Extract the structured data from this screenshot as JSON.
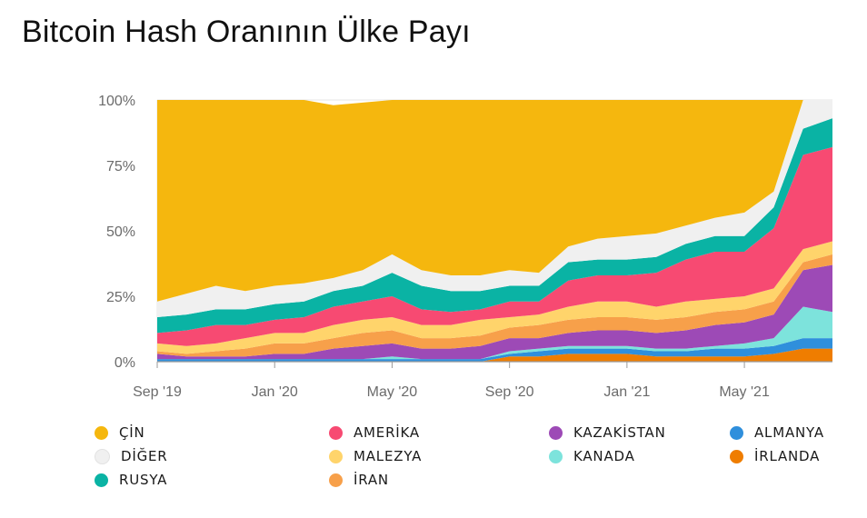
{
  "title": "Bitcoin Hash Oranının Ülke Payı",
  "chart_data": {
    "type": "area",
    "stacked": true,
    "x": [
      "2019-09",
      "2019-10",
      "2019-11",
      "2019-12",
      "2020-01",
      "2020-02",
      "2020-03",
      "2020-04",
      "2020-05",
      "2020-06",
      "2020-07",
      "2020-08",
      "2020-09",
      "2020-10",
      "2020-11",
      "2020-12",
      "2021-01",
      "2021-02",
      "2021-03",
      "2021-04",
      "2021-05",
      "2021-06",
      "2021-07",
      "2021-08"
    ],
    "x_tick_labels": [
      "Sep '19",
      "Jan '20",
      "May '20",
      "Sep '20",
      "Jan '21",
      "May '21"
    ],
    "y_tick_labels": [
      "0%",
      "25%",
      "50%",
      "75%",
      "100%"
    ],
    "ylim": [
      0,
      100
    ],
    "grid": true,
    "legend_position": "bottom",
    "series": [
      {
        "name": "İRLANDA",
        "color": "#ef7d00",
        "values": [
          0,
          0,
          0,
          0,
          0,
          0,
          0,
          0,
          0,
          0,
          0,
          0,
          2,
          2,
          3,
          3,
          3,
          2,
          2,
          2,
          2,
          3,
          5,
          5
        ]
      },
      {
        "name": "ALMANYA",
        "color": "#2f8fdc",
        "values": [
          1,
          1,
          1,
          1,
          1,
          1,
          1,
          1,
          1,
          1,
          1,
          1,
          1,
          2,
          2,
          2,
          2,
          2,
          2,
          3,
          3,
          3,
          4,
          4
        ]
      },
      {
        "name": "KANADA",
        "color": "#7de3dc",
        "values": [
          0,
          0,
          0,
          0,
          0,
          0,
          0,
          0,
          1,
          0,
          0,
          0,
          1,
          1,
          1,
          1,
          1,
          1,
          1,
          1,
          2,
          3,
          12,
          10
        ]
      },
      {
        "name": "KAZAKİSTAN",
        "color": "#9d4ab6",
        "values": [
          2,
          1,
          1,
          1,
          2,
          2,
          4,
          5,
          5,
          4,
          4,
          5,
          5,
          4,
          5,
          6,
          6,
          6,
          7,
          8,
          8,
          9,
          14,
          18
        ]
      },
      {
        "name": "İRAN",
        "color": "#f7a04a",
        "values": [
          1,
          1,
          2,
          3,
          4,
          4,
          4,
          5,
          5,
          4,
          4,
          4,
          4,
          5,
          5,
          5,
          5,
          5,
          5,
          5,
          5,
          5,
          3,
          4
        ]
      },
      {
        "name": "MALEZYA",
        "color": "#ffd46b",
        "values": [
          3,
          3,
          3,
          4,
          4,
          4,
          5,
          5,
          5,
          5,
          5,
          6,
          4,
          4,
          5,
          6,
          6,
          5,
          6,
          5,
          5,
          5,
          5,
          5
        ]
      },
      {
        "name": "AMERİKA",
        "color": "#f74a72",
        "values": [
          4,
          6,
          7,
          5,
          5,
          6,
          7,
          7,
          8,
          6,
          5,
          4,
          6,
          5,
          10,
          10,
          10,
          13,
          16,
          18,
          17,
          23,
          36,
          36
        ]
      },
      {
        "name": "RUSYA",
        "color": "#0ab3a4",
        "values": [
          6,
          6,
          6,
          6,
          6,
          6,
          6,
          6,
          9,
          9,
          8,
          7,
          6,
          6,
          7,
          6,
          6,
          6,
          6,
          6,
          6,
          8,
          10,
          11
        ]
      },
      {
        "name": "DİĞER",
        "color": "#f0f0f0",
        "values": [
          6,
          8,
          9,
          7,
          7,
          7,
          5,
          6,
          7,
          6,
          6,
          6,
          6,
          5,
          6,
          8,
          9,
          9,
          7,
          7,
          9,
          6,
          15,
          7
        ]
      },
      {
        "name": "ÇİN",
        "color": "#f5b70e",
        "values": [
          77,
          74,
          71,
          73,
          71,
          70,
          66,
          64,
          59,
          65,
          67,
          67,
          65,
          66,
          56,
          53,
          52,
          51,
          48,
          45,
          43,
          35,
          0,
          0
        ]
      }
    ]
  },
  "legend": {
    "columns": [
      [
        "ÇİN",
        "DİĞER",
        "RUSYA"
      ],
      [
        "AMERİKA",
        "MALEZYA",
        "İRAN"
      ],
      [
        "KAZAKİSTAN",
        "KANADA"
      ],
      [
        "ALMANYA",
        "İRLANDA"
      ]
    ]
  }
}
